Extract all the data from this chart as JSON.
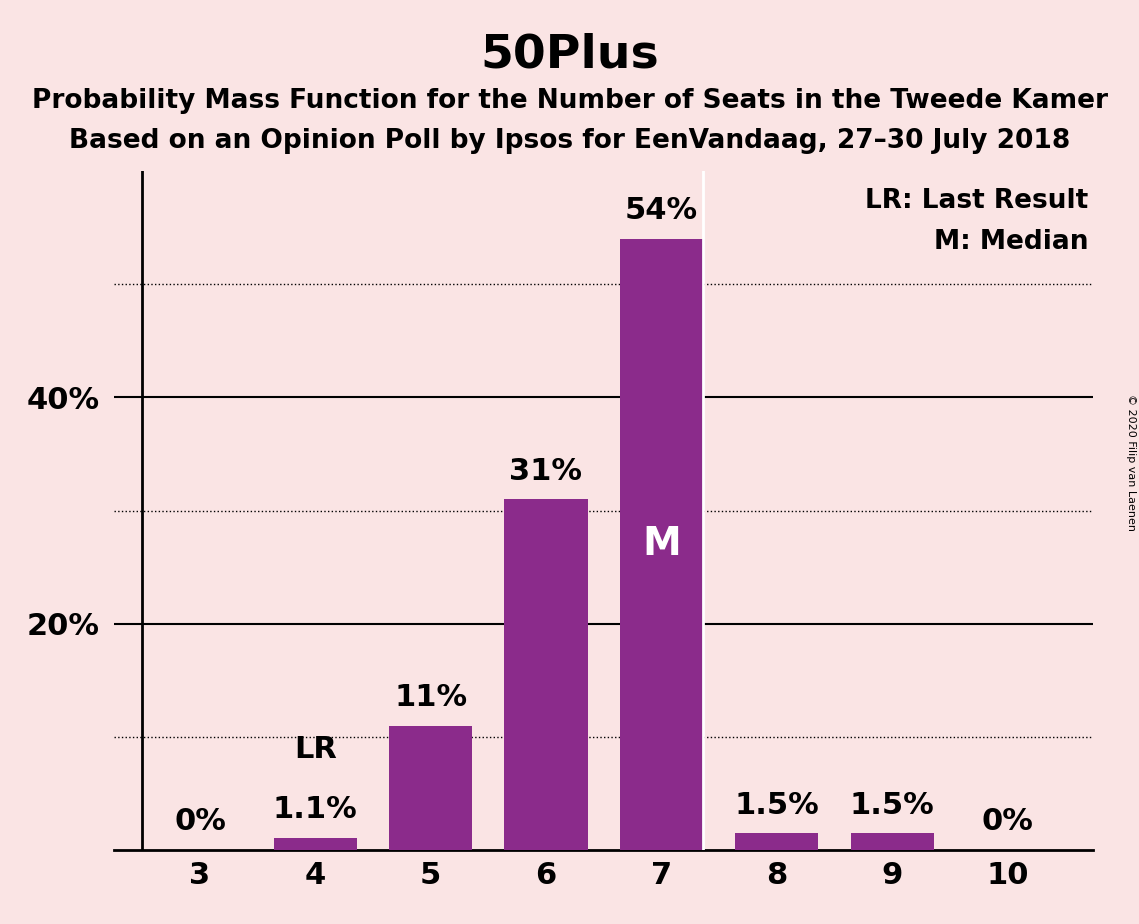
{
  "title": "50Plus",
  "subtitle1": "Probability Mass Function for the Number of Seats in the Tweede Kamer",
  "subtitle2": "Based on an Opinion Poll by Ipsos for EenVandaag, 27–30 July 2018",
  "copyright": "© 2020 Filip van Laenen",
  "categories": [
    3,
    4,
    5,
    6,
    7,
    8,
    9,
    10
  ],
  "values": [
    0.0,
    1.1,
    11.0,
    31.0,
    54.0,
    1.5,
    1.5,
    0.0
  ],
  "bar_color": "#8B2B8B",
  "background_color": "#FAE4E4",
  "ymax": 60,
  "bar_labels": [
    "0%",
    "1.1%",
    "11%",
    "31%",
    "54%",
    "1.5%",
    "1.5%",
    "0%"
  ],
  "lr_seat": 4,
  "median_seat": 7,
  "legend_lr": "LR: Last Result",
  "legend_m": "M: Median",
  "dotted_yticks": [
    10,
    30,
    50
  ],
  "solid_ytick_labels": {
    "20": "20%",
    "40": "40%"
  },
  "title_fontsize": 34,
  "subtitle_fontsize": 19,
  "label_fontsize": 19,
  "tick_fontsize": 22,
  "bar_label_fontsize": 22
}
